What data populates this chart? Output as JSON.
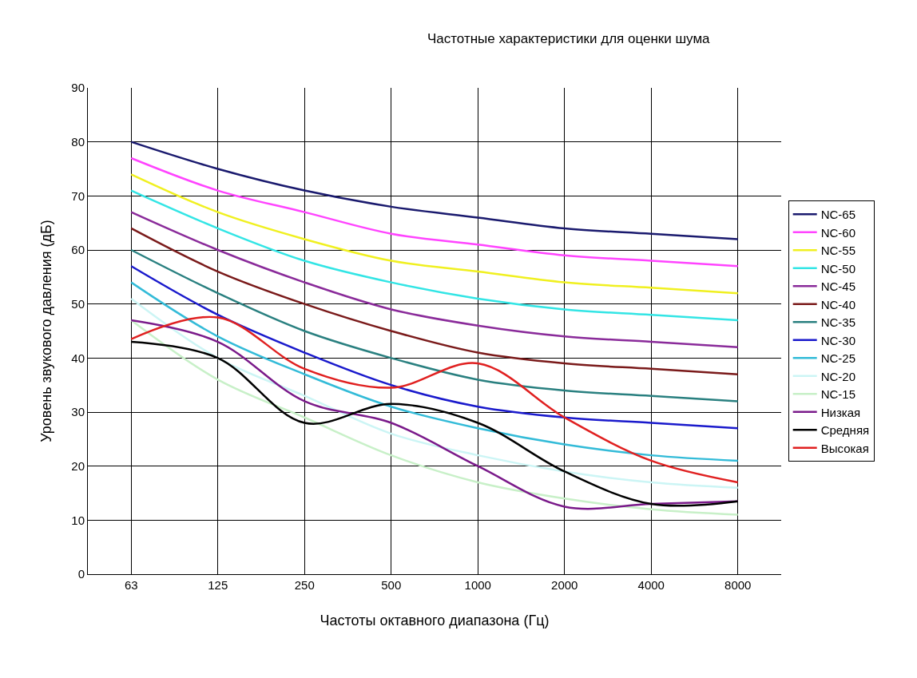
{
  "chart_data": {
    "type": "line",
    "title": "Частотные характеристики для оценки шума",
    "xlabel": "Частоты октавного диапазона (Гц)",
    "ylabel": "Уровень звукового давления (дБ)",
    "categories": [
      "63",
      "125",
      "250",
      "500",
      "1000",
      "2000",
      "4000",
      "8000"
    ],
    "ylim": [
      0,
      90
    ],
    "yticks": [
      0,
      10,
      20,
      30,
      40,
      50,
      60,
      70,
      80,
      90
    ],
    "grid": true,
    "legend": "right",
    "marker": "none",
    "line_style": "solid",
    "series": [
      {
        "name": "NC-65",
        "color": "#1a1a6e",
        "values": [
          80,
          75,
          71,
          68,
          66,
          64,
          63,
          62
        ]
      },
      {
        "name": "NC-60",
        "color": "#ff44ff",
        "values": [
          77,
          71,
          67,
          63,
          61,
          59,
          58,
          57
        ]
      },
      {
        "name": "NC-55",
        "color": "#f0f020",
        "values": [
          74,
          67,
          62,
          58,
          56,
          54,
          53,
          52
        ]
      },
      {
        "name": "NC-50",
        "color": "#33e5e5",
        "values": [
          71,
          64,
          58,
          54,
          51,
          49,
          48,
          47
        ]
      },
      {
        "name": "NC-45",
        "color": "#8a2b9a",
        "values": [
          67,
          60,
          54,
          49,
          46,
          44,
          43,
          42
        ]
      },
      {
        "name": "NC-40",
        "color": "#7a1a1a",
        "values": [
          64,
          56,
          50,
          45,
          41,
          39,
          38,
          37
        ]
      },
      {
        "name": "NC-35",
        "color": "#2a8080",
        "values": [
          60,
          52,
          45,
          40,
          36,
          34,
          33,
          32
        ]
      },
      {
        "name": "NC-30",
        "color": "#1a1acc",
        "values": [
          57,
          48,
          41,
          35,
          31,
          29,
          28,
          27
        ]
      },
      {
        "name": "NC-25",
        "color": "#33bbd8",
        "values": [
          54,
          44,
          37,
          31,
          27,
          24,
          22,
          21
        ]
      },
      {
        "name": "NC-20",
        "color": "#ccf5f5",
        "values": [
          51,
          40,
          33,
          26,
          22,
          19,
          17,
          16
        ]
      },
      {
        "name": "NC-15",
        "color": "#c8f0c8",
        "values": [
          47,
          36,
          29,
          22,
          17,
          14,
          12,
          11
        ]
      },
      {
        "name": "Низкая",
        "color": "#7a1a8a",
        "values": [
          47,
          43,
          32,
          28,
          20,
          12.5,
          13,
          13.5
        ]
      },
      {
        "name": "Средняя",
        "color": "#000000",
        "values": [
          43,
          40,
          28,
          31.5,
          28,
          19,
          13,
          13.5
        ]
      },
      {
        "name": "Высокая",
        "color": "#e02020",
        "values": [
          43.5,
          47.5,
          38,
          34.5,
          39,
          29,
          21,
          17
        ]
      }
    ]
  }
}
